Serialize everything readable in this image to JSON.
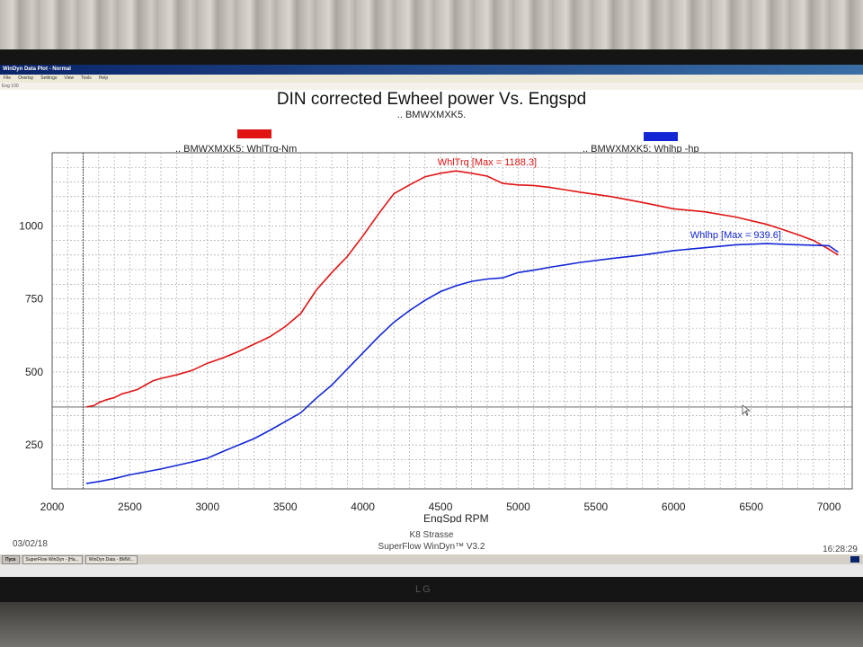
{
  "window": {
    "title": "WinDyn Data Plot - Normal",
    "menu": [
      "File",
      "Overlay",
      "Settings",
      "View",
      "Tools",
      "Help"
    ],
    "toolbar_text": "Eng 100"
  },
  "chart_data": {
    "type": "line",
    "title": "DIN corrected Ewheel power Vs. Engspd",
    "subtitle": ".. BMWXMXK5.",
    "xlabel": "EngSpd RPM",
    "ylabel": "",
    "xlim": [
      2000,
      7150
    ],
    "ylim": [
      100,
      1250
    ],
    "xticks": [
      2000,
      2500,
      3000,
      3500,
      4000,
      4500,
      5000,
      5500,
      6000,
      6500,
      7000
    ],
    "yticks": [
      250,
      500,
      750,
      1000
    ],
    "reference_x": 2200,
    "reference_y": 380,
    "grid": true,
    "series": [
      {
        "name": ".. BMWXMXK5: WhlTrq-Nm",
        "color": "#e11414",
        "annotation": "WhlTrq [Max = 1188.3]",
        "x": [
          2220,
          2270,
          2300,
          2350,
          2400,
          2450,
          2500,
          2550,
          2600,
          2650,
          2700,
          2800,
          2900,
          3000,
          3100,
          3200,
          3300,
          3400,
          3500,
          3600,
          3700,
          3800,
          3900,
          4000,
          4100,
          4200,
          4300,
          4400,
          4500,
          4600,
          4700,
          4800,
          4900,
          5000,
          5100,
          5200,
          5400,
          5600,
          5800,
          6000,
          6200,
          6400,
          6600,
          6700,
          6800,
          6900,
          7000,
          7060
        ],
        "values": [
          380,
          385,
          395,
          405,
          412,
          425,
          432,
          440,
          455,
          470,
          478,
          490,
          505,
          530,
          548,
          570,
          595,
          620,
          655,
          700,
          780,
          840,
          895,
          965,
          1040,
          1110,
          1140,
          1168,
          1180,
          1188,
          1180,
          1170,
          1145,
          1140,
          1138,
          1132,
          1115,
          1100,
          1080,
          1058,
          1048,
          1030,
          1005,
          988,
          970,
          950,
          920,
          900
        ]
      },
      {
        "name": ".. BMWXMXK5: Whlhp -hp",
        "color": "#1226d6",
        "annotation": "Whlhp  [Max = 939.6]",
        "x": [
          2220,
          2300,
          2400,
          2500,
          2600,
          2700,
          2800,
          2900,
          3000,
          3100,
          3200,
          3300,
          3400,
          3500,
          3600,
          3700,
          3800,
          3900,
          4000,
          4100,
          4200,
          4300,
          4400,
          4500,
          4600,
          4700,
          4800,
          4900,
          5000,
          5100,
          5200,
          5400,
          5600,
          5800,
          6000,
          6200,
          6400,
          6600,
          6800,
          7000,
          7060
        ],
        "values": [
          118,
          125,
          135,
          148,
          158,
          168,
          180,
          192,
          205,
          228,
          250,
          272,
          300,
          330,
          360,
          410,
          455,
          510,
          565,
          620,
          670,
          710,
          745,
          775,
          795,
          810,
          818,
          822,
          840,
          848,
          858,
          875,
          888,
          900,
          915,
          925,
          935,
          939,
          935,
          932,
          910
        ]
      }
    ]
  },
  "footer": {
    "date": "03/02/18",
    "location": "K8 Strasse",
    "software": "SuperFlow WinDyn™ V3.2",
    "time": "16:28:29"
  },
  "taskbar": {
    "start": "Пуск",
    "tasks": [
      "SuperFlow WinDyn - [Ha...",
      "WinDyn Data - BMW..."
    ]
  },
  "monitor_brand": "LG"
}
